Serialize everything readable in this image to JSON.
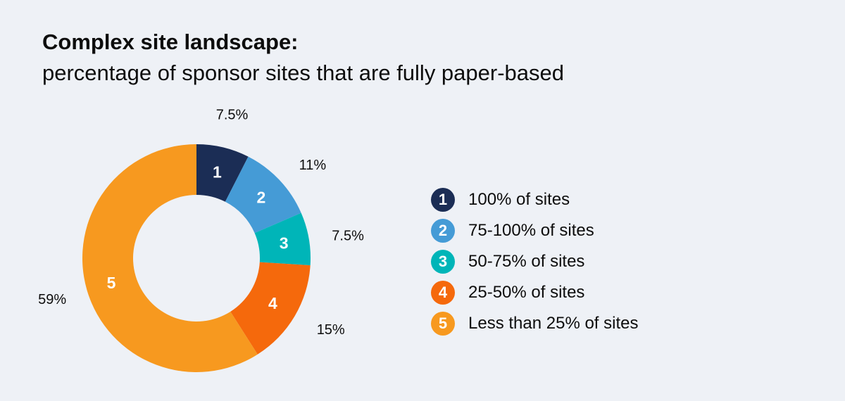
{
  "chart_data": {
    "type": "pie",
    "variant": "donut",
    "title": "Complex site landscape:",
    "subtitle": "percentage of sponsor sites that are fully paper-based",
    "slices": [
      {
        "id": "1",
        "label": "100% of sites",
        "value": 7.5,
        "value_label": "7.5%",
        "color": "#1b2d55"
      },
      {
        "id": "2",
        "label": "75-100% of sites",
        "value": 11,
        "value_label": "11%",
        "color": "#459bd6"
      },
      {
        "id": "3",
        "label": "50-75% of sites",
        "value": 7.5,
        "value_label": "7.5%",
        "color": "#00b5b8"
      },
      {
        "id": "4",
        "label": "25-50% of sites",
        "value": 15,
        "value_label": "15%",
        "color": "#f5690c"
      },
      {
        "id": "5",
        "label": "Less than 25% of sites",
        "value": 59,
        "value_label": "59%",
        "color": "#f7991f"
      }
    ],
    "legend_placement": "right"
  }
}
